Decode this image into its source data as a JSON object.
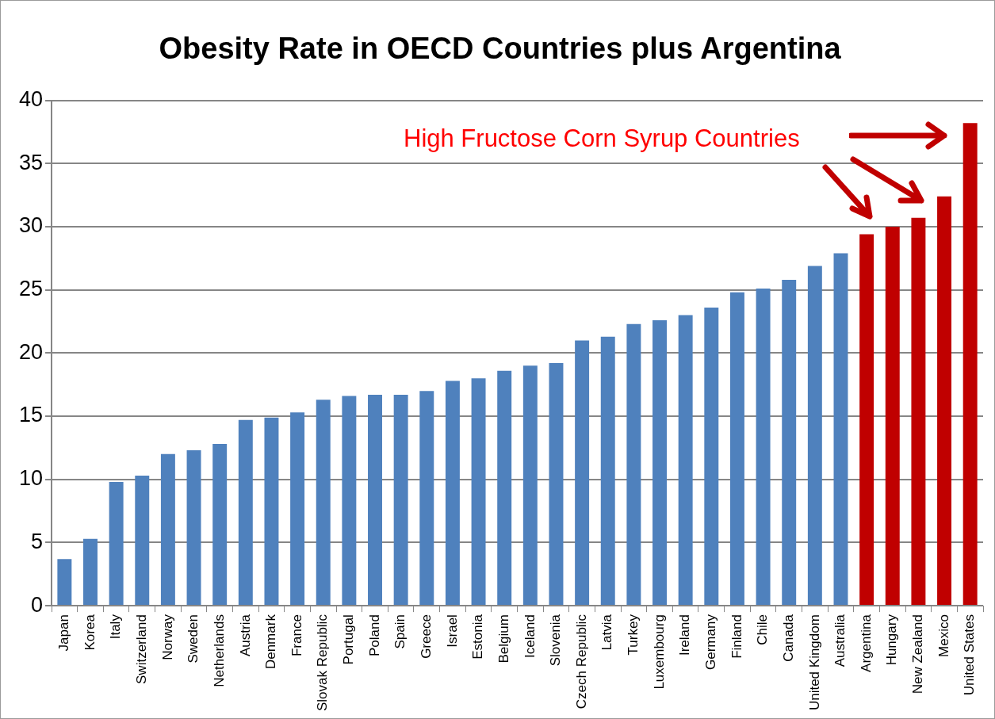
{
  "chart_data": {
    "type": "bar",
    "title": "Obesity Rate in OECD Countries plus Argentina",
    "categories": [
      "Japan",
      "Korea",
      "Italy",
      "Switzerland",
      "Norway",
      "Sweden",
      "Netherlands",
      "Austria",
      "Denmark",
      "France",
      "Slovak Republic",
      "Portugal",
      "Poland",
      "Spain",
      "Greece",
      "Israel",
      "Estonia",
      "Belgium",
      "Iceland",
      "Slovenia",
      "Czech Republic",
      "Latvia",
      "Turkey",
      "Luxembourg",
      "Ireland",
      "Germany",
      "Finland",
      "Chile",
      "Canada",
      "United Kingdom",
      "Australia",
      "Argentina",
      "Hungary",
      "New Zealand",
      "Mexico",
      "United States"
    ],
    "values": [
      3.7,
      5.3,
      9.8,
      10.3,
      12.0,
      12.3,
      12.8,
      14.7,
      14.9,
      15.3,
      16.3,
      16.6,
      16.7,
      16.7,
      17.0,
      17.8,
      18.0,
      18.6,
      19.0,
      19.2,
      21.0,
      21.3,
      22.3,
      22.6,
      23.0,
      23.6,
      24.8,
      25.1,
      25.8,
      26.9,
      27.9,
      29.4,
      30.0,
      30.7,
      32.4,
      38.2
    ],
    "colors": [
      "#4f81bd",
      "#4f81bd",
      "#4f81bd",
      "#4f81bd",
      "#4f81bd",
      "#4f81bd",
      "#4f81bd",
      "#4f81bd",
      "#4f81bd",
      "#4f81bd",
      "#4f81bd",
      "#4f81bd",
      "#4f81bd",
      "#4f81bd",
      "#4f81bd",
      "#4f81bd",
      "#4f81bd",
      "#4f81bd",
      "#4f81bd",
      "#4f81bd",
      "#4f81bd",
      "#4f81bd",
      "#4f81bd",
      "#4f81bd",
      "#4f81bd",
      "#4f81bd",
      "#4f81bd",
      "#4f81bd",
      "#4f81bd",
      "#4f81bd",
      "#4f81bd",
      "#c00000",
      "#c00000",
      "#c00000",
      "#c00000",
      "#c00000"
    ],
    "ylim": [
      0,
      40
    ],
    "yticks": [
      0,
      5,
      10,
      15,
      20,
      25,
      30,
      35,
      40
    ],
    "grid": "y",
    "legend": false,
    "annotations": [
      "High Fructose Corn Syrup Countries"
    ]
  }
}
